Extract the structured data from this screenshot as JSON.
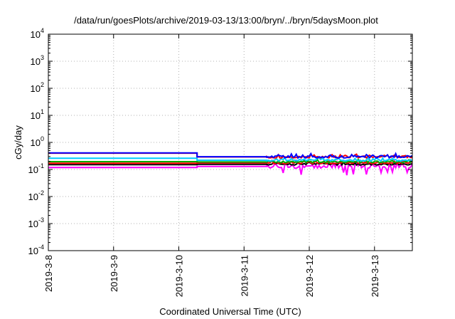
{
  "chart_data": {
    "type": "line",
    "title": "/data/run/goesPlots/archive/2019-03-13/13:00/bryn/../bryn/5daysMoon.plot",
    "xlabel": "Coordinated Universal Time (UTC)",
    "ylabel": "cGy/day",
    "yscale": "log",
    "ylim": [
      0.0001,
      10000
    ],
    "xlim": [
      0,
      5.58
    ],
    "grid": true,
    "x_ticks": [
      {
        "value": 0,
        "label": "2019-3-8"
      },
      {
        "value": 1,
        "label": "2019-3-9"
      },
      {
        "value": 2,
        "label": "2019-3-10"
      },
      {
        "value": 3,
        "label": "2019-3-11"
      },
      {
        "value": 4,
        "label": "2019-3-12"
      },
      {
        "value": 5,
        "label": "2019-3-13"
      }
    ],
    "y_ticks": [
      {
        "value": 0.0001,
        "base": "10",
        "exp": "-4"
      },
      {
        "value": 0.001,
        "base": "10",
        "exp": "-3"
      },
      {
        "value": 0.01,
        "base": "10",
        "exp": "-2"
      },
      {
        "value": 0.1,
        "base": "10",
        "exp": "-1"
      },
      {
        "value": 1,
        "base": "10",
        "exp": "0"
      },
      {
        "value": 10,
        "base": "10",
        "exp": "1"
      },
      {
        "value": 100,
        "base": "10",
        "exp": "2"
      },
      {
        "value": 1000,
        "base": "10",
        "exp": "3"
      },
      {
        "value": 10000,
        "base": "10",
        "exp": "4"
      }
    ],
    "series": [
      {
        "color": "#ff00ff",
        "base": 0.118,
        "step": 2.28,
        "after": 0.13,
        "noise": 0.6,
        "dips": true
      },
      {
        "color": "#000000",
        "base": 0.15,
        "step": 2.28,
        "after": 0.155,
        "noise": 0.25,
        "dips": false
      },
      {
        "color": "#ff0000",
        "base": 0.17,
        "step": 2.28,
        "after": 0.175,
        "noise": 0.28,
        "dips": false
      },
      {
        "color": "#00aa00",
        "base": 0.195,
        "step": 2.28,
        "after": 0.19,
        "noise": 0.3,
        "dips": false
      },
      {
        "color": "#00ccff",
        "base": 0.26,
        "step": 2.28,
        "after": 0.22,
        "noise": 0.3,
        "dips": false
      },
      {
        "color": "#ff0000",
        "base": 0.4,
        "step": 2.28,
        "after": 0.29,
        "noise": 0.35,
        "dips": false
      },
      {
        "color": "#0000ff",
        "base": 0.41,
        "step": 2.28,
        "after": 0.295,
        "noise": 0.4,
        "dips": false
      }
    ]
  }
}
